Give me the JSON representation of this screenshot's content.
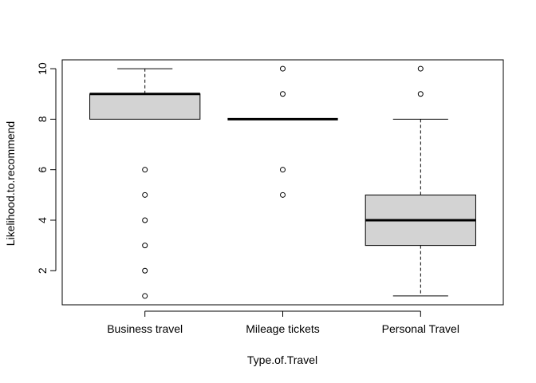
{
  "chart_data": {
    "type": "boxplot",
    "title": "",
    "xlabel": "Type.of.Travel",
    "ylabel": "Likelihood.to.recommend",
    "ylim": [
      0.65,
      10.35
    ],
    "yticks": [
      2,
      4,
      6,
      8,
      10
    ],
    "grid": false,
    "legend": "none",
    "box_fill": "#d3d3d3",
    "line_color": "#000000",
    "categories": [
      "Business travel",
      "Mileage tickets",
      "Personal Travel"
    ],
    "boxes": [
      {
        "category": "Business travel",
        "whisker_low": 8,
        "q1": 8,
        "median": 9,
        "q3": 9,
        "whisker_high": 10,
        "outliers": [
          1,
          2,
          3,
          4,
          5,
          6
        ]
      },
      {
        "category": "Mileage tickets",
        "whisker_low": 8,
        "q1": 8,
        "median": 8,
        "q3": 8,
        "whisker_high": 8,
        "outliers": [
          5,
          6,
          9,
          10
        ]
      },
      {
        "category": "Personal Travel",
        "whisker_low": 1,
        "q1": 3,
        "median": 4,
        "q3": 5,
        "whisker_high": 8,
        "outliers": [
          9,
          10
        ]
      }
    ]
  }
}
